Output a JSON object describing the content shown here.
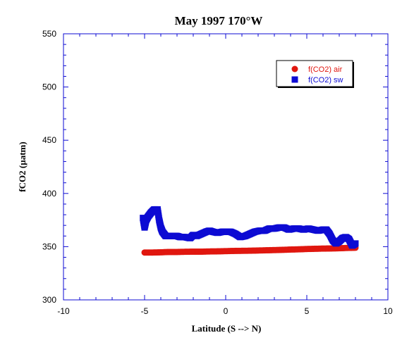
{
  "chart_data": {
    "type": "scatter",
    "title": "May 1997 170°W",
    "xlabel": "Latitude (S --> N)",
    "ylabel": "fCO2 (µatm)",
    "xlim": [
      -10,
      10
    ],
    "ylim": [
      300,
      550
    ],
    "xticks": [
      -10,
      -5,
      0,
      5,
      10
    ],
    "yticks": [
      300,
      350,
      400,
      450,
      500,
      550
    ],
    "grid": false,
    "legend_position": "top-right",
    "series": [
      {
        "name": "f(CO2) air",
        "marker": "circle",
        "color": "#e0170f",
        "x": [
          -5.0,
          -4.5,
          -4.0,
          -3.5,
          -3.0,
          -2.5,
          -2.0,
          -1.5,
          -1.0,
          -0.5,
          0.0,
          0.5,
          1.0,
          1.5,
          2.0,
          2.5,
          3.0,
          3.5,
          4.0,
          4.5,
          5.0,
          5.5,
          6.0,
          6.5,
          7.0,
          7.5,
          8.0
        ],
        "values": [
          344.5,
          344.5,
          344.7,
          345.0,
          345.0,
          345.2,
          345.3,
          345.3,
          345.5,
          345.6,
          345.8,
          346.0,
          346.1,
          346.2,
          346.4,
          346.6,
          346.8,
          347.0,
          347.3,
          347.5,
          347.8,
          348.0,
          348.2,
          348.3,
          348.5,
          348.8,
          349.0
        ]
      },
      {
        "name": "f(CO2) sw",
        "marker": "square",
        "color": "#0d0bd3",
        "x": [
          -5.1,
          -5.0,
          -4.9,
          -4.8,
          -4.6,
          -4.4,
          -4.2,
          -4.1,
          -4.0,
          -3.9,
          -3.7,
          -3.5,
          -3.2,
          -3.0,
          -2.8,
          -2.5,
          -2.2,
          -2.0,
          -1.8,
          -1.5,
          -1.2,
          -1.0,
          -0.8,
          -0.5,
          -0.2,
          0.0,
          0.3,
          0.6,
          0.9,
          1.2,
          1.5,
          1.8,
          2.1,
          2.4,
          2.7,
          3.0,
          3.3,
          3.6,
          3.9,
          4.2,
          4.5,
          4.8,
          5.1,
          5.4,
          5.7,
          6.0,
          6.2,
          6.4,
          6.6,
          6.8,
          7.0,
          7.2,
          7.4,
          7.6,
          7.8,
          8.0
        ],
        "values": [
          377,
          368,
          375,
          378,
          382,
          385,
          385,
          375,
          368,
          364,
          360,
          360,
          360,
          360,
          359,
          359,
          358,
          361,
          360,
          362,
          364,
          365,
          364,
          363,
          364,
          364,
          364,
          362,
          359,
          360,
          362,
          364,
          365,
          365,
          367,
          367,
          368,
          368,
          366,
          367,
          367,
          366,
          367,
          366,
          365,
          366,
          366,
          362,
          356,
          353,
          355,
          358,
          359,
          357,
          351,
          353
        ]
      }
    ]
  }
}
